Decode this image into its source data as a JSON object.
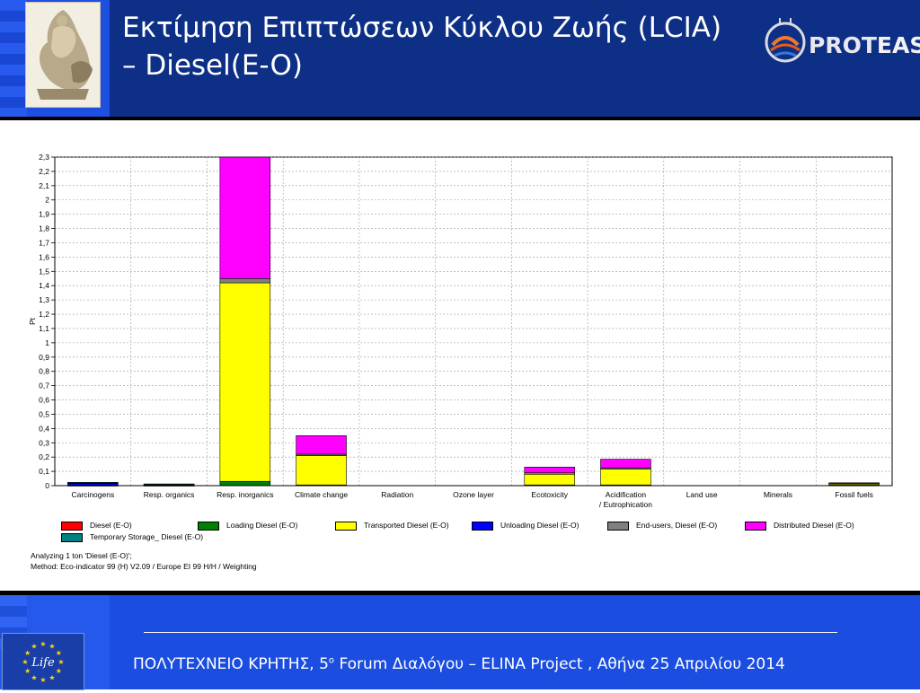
{
  "slide": {
    "title_line1": "Εκτίμηση Επιπτώσεων Κύκλου Ζωής (LCIA)",
    "title_line2": "–  Diesel(E-O)",
    "logo_text_a": "PROT",
    "logo_text_b": "EAS",
    "footer_rule": "___________________________________________________________________",
    "footer_prefix": "ΠΟΛΥΤΕΧΝΕΙΟ ΚΡΗΤΗΣ, 5",
    "footer_sup": "ο",
    "footer_suffix": "  Forum Διαλόγου – ELINA Project , Αθήνα 25 Απριλίου 2014",
    "eu_label": "Life"
  },
  "colors": {
    "header_bg": "#0d2f86",
    "footer_bg": "#1b4ee0",
    "accent_left": "#1d4fe0"
  },
  "chart_data": {
    "type": "bar",
    "stacked": true,
    "ylabel": "Pt",
    "xlabel": "",
    "title": "",
    "ylim": [
      0,
      2.3
    ],
    "yticks": [
      "0",
      "0,1",
      "0,2",
      "0,3",
      "0,4",
      "0,5",
      "0,6",
      "0,7",
      "0,8",
      "0,9",
      "1",
      "1,1",
      "1,2",
      "1,3",
      "1,4",
      "1,5",
      "1,6",
      "1,7",
      "1,8",
      "1,9",
      "2",
      "2,1",
      "2,2",
      "2,3"
    ],
    "grid": true,
    "categories": [
      "Carcinogens",
      "Resp. organics",
      "Resp. inorganics",
      "Climate change",
      "Radiation",
      "Ozone layer",
      "Ecotoxicity",
      "Acidification\n/ Eutrophication",
      "Land use",
      "Minerals",
      "Fossil fuels"
    ],
    "series": [
      {
        "name": "Diesel (E-O)",
        "color": "#ff0000",
        "values": [
          0,
          0,
          0,
          0,
          0,
          0,
          0,
          0,
          0,
          0,
          0
        ]
      },
      {
        "name": "Loading Diesel (E-O)",
        "color": "#008000",
        "values": [
          0.002,
          0.002,
          0.03,
          0.005,
          0,
          0,
          0.005,
          0.005,
          0,
          0,
          0.004
        ]
      },
      {
        "name": "Transported Diesel (E-O)",
        "color": "#ffff00",
        "values": [
          0,
          0.004,
          1.39,
          0.205,
          0,
          0,
          0.075,
          0.11,
          0,
          0,
          0.008
        ]
      },
      {
        "name": "Unloading Diesel (E-O)",
        "color": "#0000ff",
        "values": [
          0.012,
          0,
          0,
          0,
          0,
          0,
          0,
          0,
          0,
          0,
          0
        ]
      },
      {
        "name": "End-users, Diesel (E-O)",
        "color": "#808080",
        "values": [
          0.006,
          0.003,
          0.03,
          0.01,
          0,
          0,
          0.01,
          0.01,
          0,
          0,
          0.004
        ]
      },
      {
        "name": "Distributed Diesel (E-O)",
        "color": "#ff00ff",
        "values": [
          0,
          0,
          0.85,
          0.13,
          0,
          0,
          0.04,
          0.06,
          0,
          0,
          0
        ]
      },
      {
        "name": "Temporary Storage_ Diesel (E-O)",
        "color": "#008080",
        "values": [
          0.003,
          0.003,
          0,
          0,
          0,
          0,
          0,
          0,
          0,
          0,
          0.004
        ]
      }
    ],
    "notes": [
      "Analyzing 1 ton 'Diesel (E-O)';",
      "Method: Eco-indicator 99 (H) V2.09 / Europe EI 99 H/H / Weighting"
    ]
  }
}
